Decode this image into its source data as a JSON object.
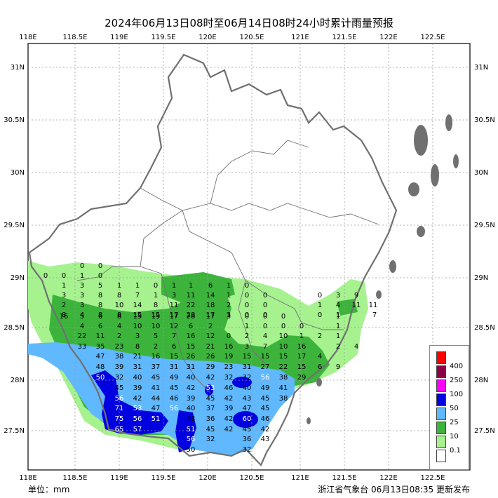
{
  "title": "2024年06月13日08时至06月14日08时24小时累计雨量预报",
  "unit_label": "单位：mm",
  "footer": "浙江省气象台 06月13日08:35 更新发布",
  "axes": {
    "lon_ticks": [
      "118E",
      "118.5E",
      "119E",
      "119.5E",
      "120E",
      "120.5E",
      "121E",
      "121.5E",
      "122E",
      "122.5E"
    ],
    "lat_ticks": [
      "31N",
      "30.5N",
      "30N",
      "29.5N",
      "29N",
      "28.5N",
      "28N",
      "27.5N"
    ]
  },
  "legend": {
    "items": [
      {
        "label": "400",
        "color": "#ff0000"
      },
      {
        "label": "250",
        "color": "#8b0040"
      },
      {
        "label": "100",
        "color": "#ff00ff"
      },
      {
        "label": "50",
        "color": "#0000e0"
      },
      {
        "label": "25",
        "color": "#60b8ff"
      },
      {
        "label": "10",
        "color": "#3cb43c"
      },
      {
        "label": "0.1",
        "color": "#a6f28f"
      },
      {
        "label": "",
        "color": "#ffffff"
      }
    ]
  },
  "colors": {
    "light_green": "#a6f28f",
    "green": "#3cb43c",
    "light_blue": "#60b8ff",
    "blue": "#0000e0",
    "boundary": "#707070",
    "grid": "#9a9a9a"
  },
  "station_values": [
    [
      "0",
      "0"
    ],
    [
      "0",
      "0",
      "1",
      "0"
    ],
    [
      "1",
      "3",
      "5",
      "1",
      "1",
      "0",
      "1",
      "1",
      "6",
      "1",
      "0"
    ],
    [
      "3",
      "3",
      "8",
      "8",
      "7",
      "1",
      "3",
      "11",
      "14",
      "1",
      "0",
      "0",
      "0",
      "3",
      "9"
    ],
    [
      "2",
      "3",
      "8",
      "10",
      "14",
      "8",
      "11",
      "22",
      "18",
      "2",
      "0",
      "0",
      "1",
      "4",
      "11",
      "11"
    ],
    [
      "8",
      "4",
      "8",
      "8",
      "15",
      "15",
      "17",
      "28",
      "17",
      "3",
      "0",
      "0",
      "0",
      "1",
      "7"
    ],
    [
      "16",
      "5",
      "6",
      "8",
      "15",
      "15",
      "17",
      "28",
      "17",
      "3",
      "0",
      "0",
      "0",
      "1"
    ],
    [
      "4",
      "6",
      "4",
      "10",
      "10",
      "12",
      "6",
      "2",
      "1",
      "0",
      "0",
      "0",
      "1"
    ],
    [
      "22",
      "11",
      "2",
      "3",
      "5",
      "7",
      "16",
      "12",
      "0",
      "2",
      "4",
      "10",
      "1",
      "2",
      "1"
    ],
    [
      "33",
      "35",
      "23",
      "8",
      "2",
      "6",
      "15",
      "21",
      "16",
      "3",
      "7",
      "10",
      "16",
      "2",
      "4"
    ],
    [
      "47",
      "38",
      "21",
      "16",
      "15",
      "26",
      "26",
      "19",
      "15",
      "15",
      "15",
      "17",
      "4"
    ],
    [
      "48",
      "39",
      "31",
      "37",
      "31",
      "31",
      "29",
      "23",
      "31",
      "27",
      "22",
      "15",
      "6",
      "9"
    ],
    [
      "50",
      "32",
      "40",
      "45",
      "49",
      "40",
      "42",
      "32",
      "32",
      "56",
      "38",
      "29"
    ],
    [
      "45",
      "39",
      "41",
      "45",
      "42",
      "53",
      "46",
      "40",
      "49",
      "41"
    ],
    [
      "56",
      "42",
      "44",
      "46",
      "39",
      "45",
      "42",
      "43",
      "45",
      "38"
    ],
    [
      "71",
      "53",
      "47",
      "56",
      "40",
      "37",
      "39",
      "47",
      "45"
    ],
    [
      "75",
      "56",
      "51",
      "43",
      "36",
      "42",
      "60",
      "46"
    ],
    [
      "65",
      "57",
      "51",
      "45",
      "42",
      "45",
      "42"
    ],
    [
      "56",
      "32",
      "36",
      "43"
    ],
    [
      "50",
      "32"
    ]
  ]
}
